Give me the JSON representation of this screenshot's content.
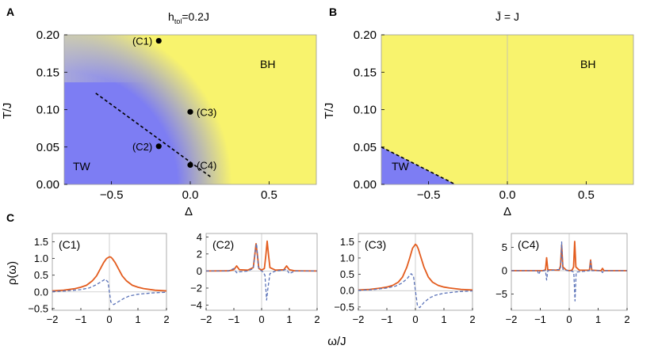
{
  "panel_letters": {
    "a": "A",
    "b": "B",
    "c": "C"
  },
  "colors": {
    "blue": "#7d7df3",
    "yellow": "#f8f36d",
    "orange": "#e35c1e",
    "dashed": "#5a72b8",
    "gridline": "#bbbbbb"
  },
  "chart_data": [
    {
      "type": "heatmap",
      "panel": "A",
      "title": "h_tol=0.2J",
      "title_main": "h",
      "title_sub": "tol",
      "title_rest": "=0.2J",
      "xlabel": "Δ",
      "ylabel": "T/J",
      "xlim": [
        -0.8,
        0.8
      ],
      "ylim": [
        0.0,
        0.2
      ],
      "xticks": [
        -0.5,
        0.0,
        0.5
      ],
      "xtick_labels": [
        "−0.5",
        "0.0",
        "0.5"
      ],
      "yticks": [
        0.0,
        0.05,
        0.1,
        0.15,
        0.2
      ],
      "ytick_labels": [
        "0.00",
        "0.05",
        "0.10",
        "0.15",
        "0.20"
      ],
      "regions": [
        {
          "label": "TW",
          "color": "blue"
        },
        {
          "label": "BH",
          "color": "yellow"
        }
      ],
      "boundary": {
        "style": "dashed",
        "x": [
          -0.6,
          0.13
        ],
        "y": [
          0.122,
          0.01
        ]
      },
      "points": [
        {
          "label": "(C1)",
          "x": -0.2,
          "y": 0.192
        },
        {
          "label": "(C2)",
          "x": -0.2,
          "y": 0.051
        },
        {
          "label": "(C3)",
          "x": 0.0,
          "y": 0.097
        },
        {
          "label": "(C4)",
          "x": 0.0,
          "y": 0.026
        }
      ]
    },
    {
      "type": "heatmap",
      "panel": "B",
      "title": "J̄ = J",
      "xlabel": "Δ",
      "ylabel": "T/J",
      "xlim": [
        -0.8,
        0.8
      ],
      "ylim": [
        0.0,
        0.2
      ],
      "xticks": [
        -0.5,
        0.0,
        0.5
      ],
      "xtick_labels": [
        "−0.5",
        "0.0",
        "0.5"
      ],
      "yticks": [
        0.0,
        0.05,
        0.1,
        0.15,
        0.2
      ],
      "ytick_labels": [
        "0.00",
        "0.05",
        "0.10",
        "0.15",
        "0.20"
      ],
      "regions": [
        {
          "label": "TW",
          "color": "blue"
        },
        {
          "label": "BH",
          "color": "yellow"
        }
      ],
      "boundary": {
        "style": "dashed",
        "x": [
          -0.8,
          -0.33
        ],
        "y": [
          0.05,
          0.0
        ]
      }
    },
    {
      "type": "line",
      "panel": "C1",
      "label": "(C1)",
      "ylabel": "ρ(ω)",
      "xlim": [
        -2,
        2
      ],
      "ylim": [
        -0.55,
        1.75
      ],
      "xticks": [
        -2,
        -1,
        0,
        1,
        2
      ],
      "xtick_labels": [
        "−2",
        "−1",
        "0",
        "1",
        "2"
      ],
      "yticks": [
        -0.5,
        0.0,
        0.5,
        1.0,
        1.5
      ],
      "ytick_labels": [
        "−0.5",
        "0.0",
        "0.5",
        "1.0",
        "1.5"
      ],
      "series": [
        {
          "name": "solid",
          "style": "solid",
          "color": "orange",
          "x": [
            -2.0,
            -1.6,
            -1.2,
            -1.0,
            -0.8,
            -0.6,
            -0.45,
            -0.3,
            -0.2,
            -0.1,
            0.0,
            0.05,
            0.1,
            0.2,
            0.3,
            0.45,
            0.6,
            0.8,
            1.0,
            1.2,
            1.6,
            2.0
          ],
          "y": [
            0.03,
            0.05,
            0.1,
            0.14,
            0.2,
            0.33,
            0.48,
            0.72,
            0.88,
            1.0,
            1.05,
            1.04,
            1.0,
            0.88,
            0.72,
            0.48,
            0.33,
            0.2,
            0.14,
            0.1,
            0.05,
            0.03
          ]
        },
        {
          "name": "dashed",
          "style": "dashed",
          "color": "dashed",
          "x": [
            -2.0,
            -1.5,
            -1.0,
            -0.7,
            -0.5,
            -0.3,
            -0.15,
            -0.05,
            0.0,
            0.05,
            0.15,
            0.3,
            0.5,
            0.7,
            1.0,
            1.5,
            2.0
          ],
          "y": [
            0.01,
            0.03,
            0.07,
            0.12,
            0.2,
            0.3,
            0.38,
            0.3,
            0.0,
            -0.3,
            -0.38,
            -0.3,
            -0.2,
            -0.12,
            -0.07,
            -0.03,
            -0.01
          ]
        }
      ]
    },
    {
      "type": "line",
      "panel": "C2",
      "label": "(C2)",
      "xlim": [
        -2,
        2
      ],
      "ylim": [
        -4.6,
        4.4
      ],
      "xticks": [
        -2,
        -1,
        0,
        1,
        2
      ],
      "xtick_labels": [
        "−2",
        "−1",
        "0",
        "1",
        "2"
      ],
      "yticks": [
        -4,
        -2,
        0,
        2,
        4
      ],
      "ytick_labels": [
        "−4",
        "−2",
        "0",
        "2",
        "4"
      ],
      "series": [
        {
          "name": "solid",
          "style": "solid",
          "color": "orange",
          "x": [
            -2.0,
            -1.2,
            -1.0,
            -0.9,
            -0.8,
            -0.5,
            -0.3,
            -0.25,
            -0.2,
            -0.15,
            -0.1,
            0.0,
            0.1,
            0.15,
            0.2,
            0.25,
            0.3,
            0.5,
            0.8,
            0.9,
            1.0,
            1.2,
            2.0
          ],
          "y": [
            0.0,
            0.02,
            0.15,
            0.6,
            0.15,
            0.1,
            0.4,
            1.8,
            3.2,
            1.8,
            0.3,
            0.1,
            0.3,
            1.8,
            3.5,
            1.8,
            0.4,
            0.1,
            0.15,
            0.6,
            0.15,
            0.02,
            0.0
          ]
        },
        {
          "name": "dashed",
          "style": "dashed",
          "color": "dashed",
          "x": [
            -2.0,
            -1.2,
            -1.0,
            -0.9,
            -0.8,
            -0.5,
            -0.3,
            -0.22,
            -0.18,
            -0.12,
            -0.05,
            0.0,
            0.05,
            0.12,
            0.18,
            0.22,
            0.3,
            0.5,
            0.8,
            0.9,
            1.0,
            1.2,
            2.0
          ],
          "y": [
            0.0,
            0.0,
            0.3,
            -0.2,
            -0.1,
            0.0,
            0.3,
            2.6,
            3.2,
            0.5,
            0.1,
            0.0,
            -0.1,
            -0.5,
            -3.4,
            -2.2,
            -0.3,
            0.0,
            0.1,
            0.2,
            -0.3,
            0.0,
            0.0
          ]
        }
      ]
    },
    {
      "type": "line",
      "panel": "C3",
      "label": "(C3)",
      "xlim": [
        -2,
        2
      ],
      "ylim": [
        -0.6,
        1.75
      ],
      "xticks": [
        -2,
        -1,
        0,
        1,
        2
      ],
      "xtick_labels": [
        "−2",
        "−1",
        "0",
        "1",
        "2"
      ],
      "yticks": [
        -0.5,
        0.0,
        0.5,
        1.0,
        1.5
      ],
      "ytick_labels": [
        "−0.5",
        "0.0",
        "0.5",
        "1.0",
        "1.5"
      ],
      "series": [
        {
          "name": "solid",
          "style": "solid",
          "color": "orange",
          "x": [
            -2.0,
            -1.6,
            -1.2,
            -1.0,
            -0.8,
            -0.6,
            -0.45,
            -0.3,
            -0.2,
            -0.1,
            0.0,
            0.05,
            0.1,
            0.2,
            0.3,
            0.45,
            0.6,
            0.8,
            1.0,
            1.2,
            1.6,
            2.0
          ],
          "y": [
            0.02,
            0.04,
            0.08,
            0.11,
            0.16,
            0.26,
            0.42,
            0.72,
            1.0,
            1.3,
            1.42,
            1.38,
            1.28,
            1.0,
            0.72,
            0.42,
            0.26,
            0.16,
            0.11,
            0.08,
            0.04,
            0.02
          ]
        },
        {
          "name": "dashed",
          "style": "dashed",
          "color": "dashed",
          "x": [
            -2.0,
            -1.5,
            -1.0,
            -0.7,
            -0.5,
            -0.3,
            -0.15,
            -0.07,
            0.0,
            0.07,
            0.15,
            0.3,
            0.5,
            0.7,
            1.0,
            1.5,
            2.0
          ],
          "y": [
            0.01,
            0.03,
            0.08,
            0.14,
            0.22,
            0.36,
            0.52,
            0.45,
            0.0,
            -0.45,
            -0.52,
            -0.36,
            -0.22,
            -0.14,
            -0.08,
            -0.03,
            -0.01
          ]
        }
      ]
    },
    {
      "type": "line",
      "panel": "C4",
      "label": "(C4)",
      "xlim": [
        -2,
        2
      ],
      "ylim": [
        -8.5,
        8.0
      ],
      "xticks": [
        -2,
        -1,
        0,
        1,
        2
      ],
      "xtick_labels": [
        "−2",
        "−1",
        "0",
        "1",
        "2"
      ],
      "yticks": [
        -5,
        0,
        5
      ],
      "ytick_labels": [
        "−5",
        "0",
        "5"
      ],
      "series": [
        {
          "name": "solid",
          "style": "solid",
          "color": "orange",
          "x": [
            -2.0,
            -0.9,
            -0.82,
            -0.78,
            -0.74,
            -0.35,
            -0.3,
            -0.26,
            -0.22,
            -0.1,
            0.0,
            0.1,
            0.15,
            0.19,
            0.23,
            0.35,
            0.7,
            0.74,
            0.78,
            1.1,
            1.15,
            1.2,
            2.0
          ],
          "y": [
            0.0,
            0.0,
            0.2,
            2.8,
            0.2,
            0.1,
            1.0,
            5.5,
            0.8,
            0.1,
            0.0,
            0.1,
            0.8,
            6.3,
            0.8,
            0.1,
            0.1,
            2.3,
            0.1,
            0.0,
            0.5,
            0.0,
            0.0
          ]
        },
        {
          "name": "dashed",
          "style": "dashed",
          "color": "dashed",
          "x": [
            -2.0,
            -1.1,
            -1.05,
            -1.0,
            -0.82,
            -0.78,
            -0.74,
            -0.3,
            -0.26,
            -0.22,
            -0.05,
            0.0,
            0.05,
            0.16,
            0.2,
            0.24,
            0.7,
            0.74,
            0.78,
            1.1,
            1.15,
            1.2,
            2.0
          ],
          "y": [
            0.0,
            0.0,
            -0.8,
            0.0,
            0.0,
            -2.0,
            0.0,
            0.3,
            6.2,
            0.3,
            0.0,
            0.0,
            0.0,
            -0.3,
            -6.5,
            -0.3,
            0.0,
            2.0,
            0.0,
            0.0,
            -0.4,
            0.0,
            0.0
          ]
        }
      ]
    }
  ],
  "shared": {
    "xlabel_bottom": "ω/J"
  }
}
